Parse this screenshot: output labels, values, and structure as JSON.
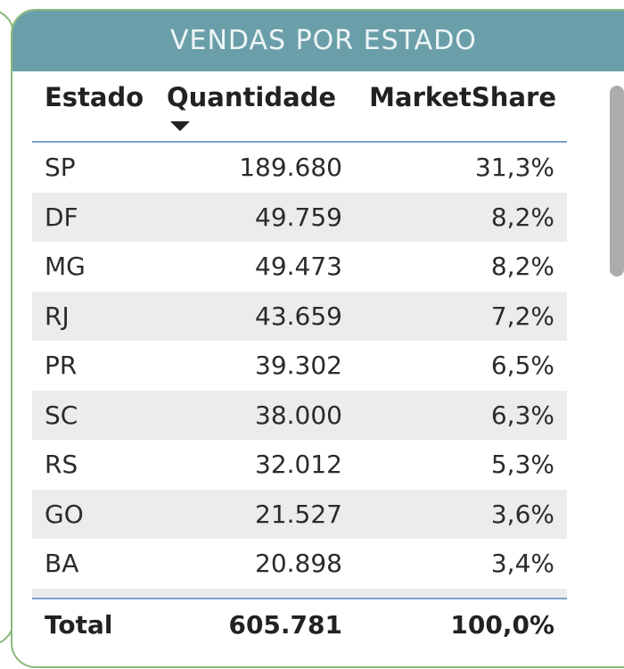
{
  "visual": {
    "title": "VENDAS POR ESTADO",
    "header_color": "#6a9fa9",
    "border_color": "#8ab87a"
  },
  "table": {
    "columns": [
      "Estado",
      "Quantidade",
      "MarketShare"
    ],
    "sort_column": "Quantidade",
    "sort_direction": "descending",
    "rows": [
      {
        "estado": "SP",
        "quantidade": "189.680",
        "share": "31,3%"
      },
      {
        "estado": "DF",
        "quantidade": "49.759",
        "share": "8,2%"
      },
      {
        "estado": "MG",
        "quantidade": "49.473",
        "share": "8,2%"
      },
      {
        "estado": "RJ",
        "quantidade": "43.659",
        "share": "7,2%"
      },
      {
        "estado": "PR",
        "quantidade": "39.302",
        "share": "6,5%"
      },
      {
        "estado": "SC",
        "quantidade": "38.000",
        "share": "6,3%"
      },
      {
        "estado": "RS",
        "quantidade": "32.012",
        "share": "5,3%"
      },
      {
        "estado": "GO",
        "quantidade": "21.527",
        "share": "3,6%"
      },
      {
        "estado": "BA",
        "quantidade": "20.898",
        "share": "3,4%"
      }
    ],
    "total": {
      "label": "Total",
      "quantidade": "605.781",
      "share": "100,0%"
    }
  }
}
